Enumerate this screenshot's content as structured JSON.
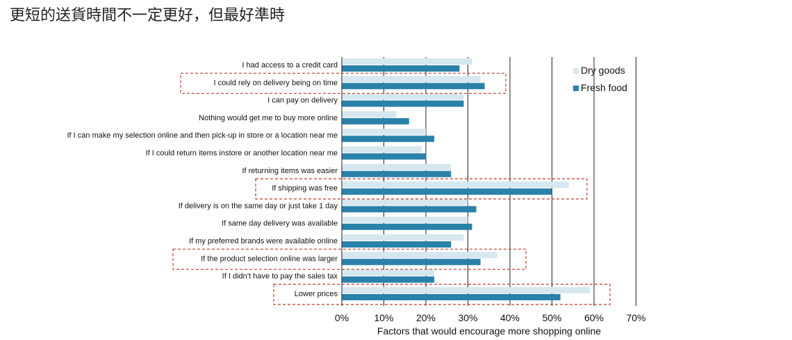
{
  "page": {
    "title": "更短的送貨時間不一定更好，但最好準時"
  },
  "chart_data": {
    "type": "bar",
    "orientation": "horizontal",
    "xlabel": "Factors that would encourage more shopping online",
    "xlim": [
      0,
      70
    ],
    "ticks": [
      "0%",
      "10%",
      "20%",
      "30%",
      "40%",
      "50%",
      "60%",
      "70%"
    ],
    "tick_values": [
      0,
      10,
      20,
      30,
      40,
      50,
      60,
      70
    ],
    "grid": "vertical",
    "legend_position": "top-right",
    "categories": [
      "I had access to a credit  card",
      "I could rely on delivery being on time",
      "I can pay on delivery",
      "Nothing would get me to buy more online",
      "If I can make my selection online and then  pick-up in store or a location near me",
      "If I could return items instore or another location near  me",
      "If returning items was easier",
      "If shipping was free",
      "If delivery is on the same day or just take 1 day",
      "If same day delivery was available",
      "If my preferred brands were available online",
      "If the product selection online  was larger",
      "If I didn’t have to pay the  sales tax",
      "Lower prices"
    ],
    "series": [
      {
        "name": "Dry goods",
        "color": "#d6e7ef",
        "values": [
          31,
          33,
          29,
          13,
          20,
          19,
          26,
          54,
          30,
          30,
          29,
          37,
          22,
          59
        ]
      },
      {
        "name": "Fresh food",
        "color": "#2a81aa",
        "values": [
          28,
          34,
          29,
          16,
          22,
          20,
          26,
          50,
          32,
          31,
          26,
          33,
          22,
          52
        ]
      }
    ],
    "highlighted_categories": [
      1,
      7,
      11,
      13
    ],
    "highlight_color": "#c0392b"
  }
}
